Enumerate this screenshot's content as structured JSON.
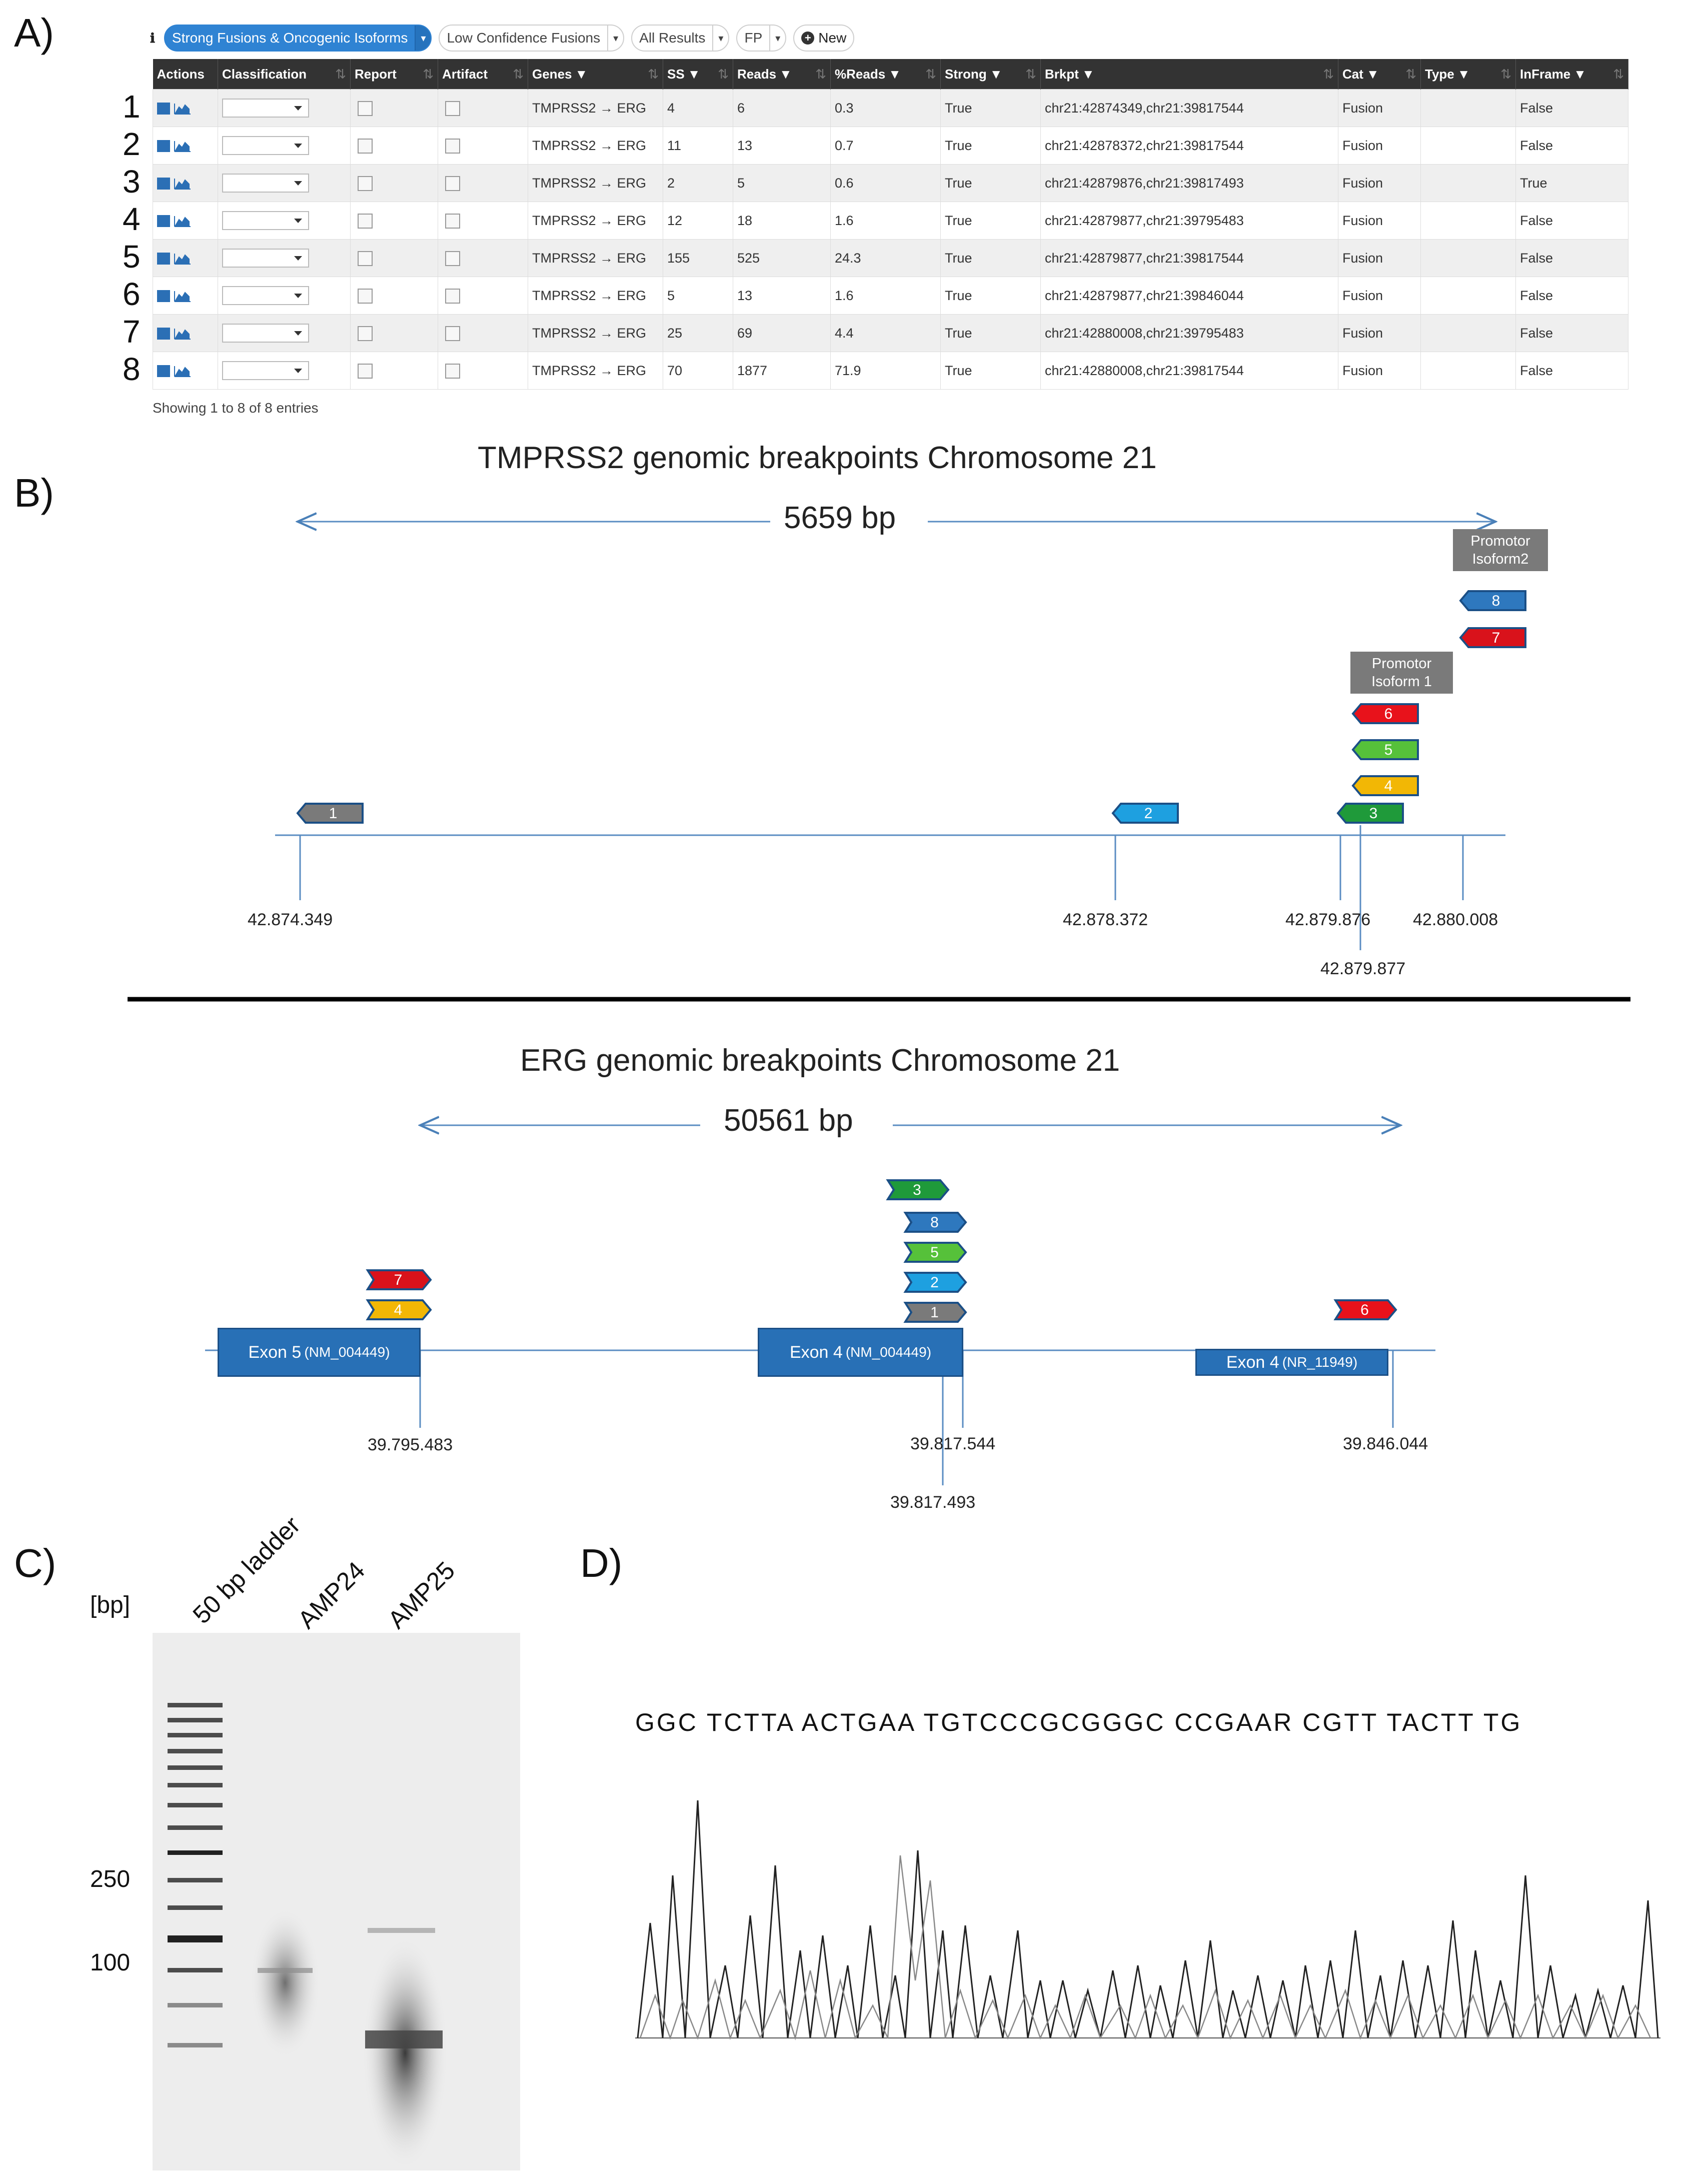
{
  "panels": {
    "a": "A)",
    "b": "B)",
    "c": "C)",
    "d": "D)"
  },
  "toolbar": {
    "info_icon": "ℹ",
    "filters": [
      {
        "label": "Strong Fusions & Oncogenic Isoforms",
        "caret": "▾",
        "active": true
      },
      {
        "label": "Low Confidence Fusions",
        "caret": "▾",
        "active": false
      },
      {
        "label": "All Results",
        "caret": "▾",
        "active": false
      },
      {
        "label": "FP",
        "caret": "▾",
        "active": false
      }
    ],
    "new_label": "New",
    "new_icon": "+"
  },
  "table": {
    "columns": [
      "Actions",
      "Classification",
      "Report",
      "Artifact",
      "Genes",
      "SS",
      "Reads",
      "%Reads",
      "Strong",
      "Brkpt",
      "Cat",
      "Type",
      "InFrame"
    ],
    "filter_glyph": "▼",
    "sort_glyph": "⇅",
    "row_numbers": [
      "1",
      "2",
      "3",
      "4",
      "5",
      "6",
      "7",
      "8"
    ],
    "rows": [
      {
        "genes": "TMPRSS2 → ERG",
        "ss": "4",
        "reads": "6",
        "pct": "0.3",
        "strong": "True",
        "brkpt": "chr21:42874349,chr21:39817544",
        "cat": "Fusion",
        "type": "",
        "inframe": "False"
      },
      {
        "genes": "TMPRSS2 → ERG",
        "ss": "11",
        "reads": "13",
        "pct": "0.7",
        "strong": "True",
        "brkpt": "chr21:42878372,chr21:39817544",
        "cat": "Fusion",
        "type": "",
        "inframe": "False"
      },
      {
        "genes": "TMPRSS2 → ERG",
        "ss": "2",
        "reads": "5",
        "pct": "0.6",
        "strong": "True",
        "brkpt": "chr21:42879876,chr21:39817493",
        "cat": "Fusion",
        "type": "",
        "inframe": "True"
      },
      {
        "genes": "TMPRSS2 → ERG",
        "ss": "12",
        "reads": "18",
        "pct": "1.6",
        "strong": "True",
        "brkpt": "chr21:42879877,chr21:39795483",
        "cat": "Fusion",
        "type": "",
        "inframe": "False"
      },
      {
        "genes": "TMPRSS2 → ERG",
        "ss": "155",
        "reads": "525",
        "pct": "24.3",
        "strong": "True",
        "brkpt": "chr21:42879877,chr21:39817544",
        "cat": "Fusion",
        "type": "",
        "inframe": "False"
      },
      {
        "genes": "TMPRSS2 → ERG",
        "ss": "5",
        "reads": "13",
        "pct": "1.6",
        "strong": "True",
        "brkpt": "chr21:42879877,chr21:39846044",
        "cat": "Fusion",
        "type": "",
        "inframe": "False"
      },
      {
        "genes": "TMPRSS2 → ERG",
        "ss": "25",
        "reads": "69",
        "pct": "4.4",
        "strong": "True",
        "brkpt": "chr21:42880008,chr21:39795483",
        "cat": "Fusion",
        "type": "",
        "inframe": "False"
      },
      {
        "genes": "TMPRSS2 → ERG",
        "ss": "70",
        "reads": "1877",
        "pct": "71.9",
        "strong": "True",
        "brkpt": "chr21:42880008,chr21:39817544",
        "cat": "Fusion",
        "type": "",
        "inframe": "False"
      }
    ],
    "info": "Showing 1 to 8 of 8 entries"
  },
  "tmprss2": {
    "title": "TMPRSS2 genomic breakpoints Chromosome 21",
    "span": "5659 bp",
    "coords": [
      "42.874.349",
      "42.878.372",
      "42.879.876",
      "42.879.877",
      "42.880.008"
    ],
    "promoter1": [
      "Promotor",
      "Isoform 1"
    ],
    "promoter2": [
      "Promotor",
      "Isoform2"
    ],
    "markers": [
      {
        "label": "1",
        "color": "#7a7a7a"
      },
      {
        "label": "2",
        "color": "#1ea0e0"
      },
      {
        "label": "3",
        "color": "#1f9a3a"
      },
      {
        "label": "4",
        "color": "#f2b705"
      },
      {
        "label": "5",
        "color": "#56c13a"
      },
      {
        "label": "6",
        "color": "#e8121b"
      },
      {
        "label": "7",
        "color": "#d9121b"
      },
      {
        "label": "8",
        "color": "#2e78be"
      }
    ]
  },
  "erg": {
    "title": "ERG genomic breakpoints Chromosome 21",
    "span": "50561 bp",
    "exons": [
      {
        "name": "Exon 5",
        "acc": "(NM_004449)"
      },
      {
        "name": "Exon 4",
        "acc": "(NM_004449)"
      },
      {
        "name": "Exon 4",
        "acc": "(NR_11949)"
      }
    ],
    "coords": [
      "39.795.483",
      "39.817.544",
      "39.817.493",
      "39.846.044"
    ],
    "markers": [
      {
        "label": "7",
        "color": "#d9121b"
      },
      {
        "label": "4",
        "color": "#f2b705"
      },
      {
        "label": "3",
        "color": "#1f9a3a"
      },
      {
        "label": "8",
        "color": "#2e78be"
      },
      {
        "label": "5",
        "color": "#56c13a"
      },
      {
        "label": "2",
        "color": "#1ea0e0"
      },
      {
        "label": "1",
        "color": "#7a7a7a"
      },
      {
        "label": "6",
        "color": "#e8121b"
      }
    ]
  },
  "gel": {
    "unit": "[bp]",
    "lanes": [
      "50 bp ladder",
      "AMP24",
      "AMP25"
    ],
    "markers": [
      "250",
      "100"
    ]
  },
  "sequence": {
    "bases": "GGC TCTTA ACTGAA TGTCCCGCGGGC CCGAAR CGTT TACTT TG"
  }
}
